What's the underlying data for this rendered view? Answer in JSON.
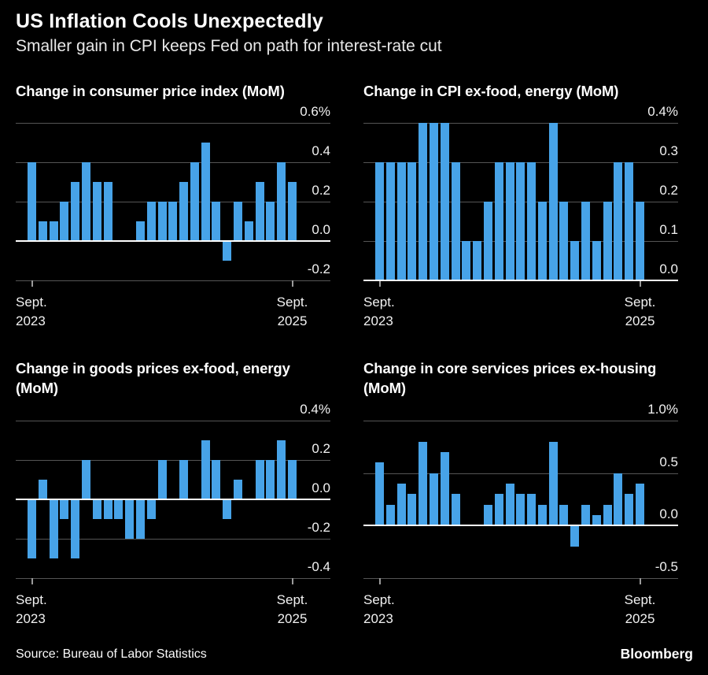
{
  "page": {
    "title": "US Inflation Cools Unexpectedly",
    "subtitle": "Smaller gain in CPI keeps Fed on path for interest-rate cut",
    "source": "Source: Bureau of Labor Statistics",
    "brand": "Bloomberg",
    "colors": {
      "background": "#000000",
      "bar": "#47a3e8",
      "gridline": "#555555",
      "zero_line": "#ffffff",
      "axis_tick": "#9a9a9a",
      "text": "#ffffff"
    }
  },
  "chart_data": [
    {
      "id": "cpi-mom",
      "type": "bar",
      "title": "Change in consumer price index (MoM)",
      "title_lines": [
        "Change in consumer price index (MoM)"
      ],
      "x_start_label": [
        "Sept.",
        "2023"
      ],
      "x_end_label": [
        "Sept.",
        "2025"
      ],
      "xlabel": "",
      "ylabel": "",
      "ylim": [
        -0.2,
        0.6
      ],
      "gridlines": [
        {
          "value": 0.6,
          "label": "0.6%"
        },
        {
          "value": 0.4,
          "label": "0.4"
        },
        {
          "value": 0.2,
          "label": "0.2"
        },
        {
          "value": 0.0,
          "label": "0.0"
        },
        {
          "value": -0.2,
          "label": "-0.2"
        }
      ],
      "values": [
        0.4,
        0.1,
        0.1,
        0.2,
        0.3,
        0.4,
        0.3,
        0.3,
        0.0,
        0.0,
        0.1,
        0.2,
        0.2,
        0.2,
        0.3,
        0.4,
        0.5,
        0.2,
        -0.1,
        0.2,
        0.1,
        0.3,
        0.2,
        0.4,
        0.3
      ]
    },
    {
      "id": "core-cpi-mom",
      "type": "bar",
      "title": "Change in CPI ex-food, energy (MoM)",
      "title_lines": [
        "Change in CPI ex-food, energy (MoM)"
      ],
      "x_start_label": [
        "Sept.",
        "2023"
      ],
      "x_end_label": [
        "Sept.",
        "2025"
      ],
      "xlabel": "",
      "ylabel": "",
      "ylim": [
        0.0,
        0.4
      ],
      "gridlines": [
        {
          "value": 0.4,
          "label": "0.4%"
        },
        {
          "value": 0.3,
          "label": "0.3"
        },
        {
          "value": 0.2,
          "label": "0.2"
        },
        {
          "value": 0.1,
          "label": "0.1"
        },
        {
          "value": 0.0,
          "label": "0.0"
        }
      ],
      "values": [
        0.3,
        0.3,
        0.3,
        0.3,
        0.4,
        0.4,
        0.4,
        0.3,
        0.1,
        0.1,
        0.2,
        0.3,
        0.3,
        0.3,
        0.3,
        0.2,
        0.4,
        0.2,
        0.1,
        0.2,
        0.1,
        0.2,
        0.3,
        0.3,
        0.2
      ]
    },
    {
      "id": "core-goods-mom",
      "type": "bar",
      "title": "Change in goods prices ex-food, energy (MoM)",
      "title_lines": [
        "Change in goods prices ex-food, energy",
        "(MoM)"
      ],
      "x_start_label": [
        "Sept.",
        "2023"
      ],
      "x_end_label": [
        "Sept.",
        "2025"
      ],
      "xlabel": "",
      "ylabel": "",
      "ylim": [
        -0.4,
        0.4
      ],
      "gridlines": [
        {
          "value": 0.4,
          "label": "0.4%"
        },
        {
          "value": 0.2,
          "label": "0.2"
        },
        {
          "value": 0.0,
          "label": "0.0"
        },
        {
          "value": -0.2,
          "label": "-0.2"
        },
        {
          "value": -0.4,
          "label": "-0.4"
        }
      ],
      "values": [
        -0.3,
        0.1,
        -0.3,
        -0.1,
        -0.3,
        0.2,
        -0.1,
        -0.1,
        -0.1,
        -0.2,
        -0.2,
        -0.1,
        0.2,
        0.0,
        0.2,
        0.0,
        0.3,
        0.2,
        -0.1,
        0.1,
        0.0,
        0.2,
        0.2,
        0.3,
        0.2
      ]
    },
    {
      "id": "core-services-ex-housing-mom",
      "type": "bar",
      "title": "Change in core services prices ex-housing (MoM)",
      "title_lines": [
        "Change in core services prices ex-housing",
        "(MoM)"
      ],
      "x_start_label": [
        "Sept.",
        "2023"
      ],
      "x_end_label": [
        "Sept.",
        "2025"
      ],
      "xlabel": "",
      "ylabel": "",
      "ylim": [
        -0.5,
        1.0
      ],
      "gridlines": [
        {
          "value": 1.0,
          "label": "1.0%"
        },
        {
          "value": 0.5,
          "label": "0.5"
        },
        {
          "value": 0.0,
          "label": "0.0"
        },
        {
          "value": -0.5,
          "label": "-0.5"
        }
      ],
      "values": [
        0.6,
        0.2,
        0.4,
        0.3,
        0.8,
        0.5,
        0.7,
        0.3,
        0.0,
        0.0,
        0.2,
        0.3,
        0.4,
        0.3,
        0.3,
        0.2,
        0.8,
        0.2,
        -0.2,
        0.2,
        0.1,
        0.2,
        0.5,
        0.3,
        0.4
      ]
    }
  ]
}
